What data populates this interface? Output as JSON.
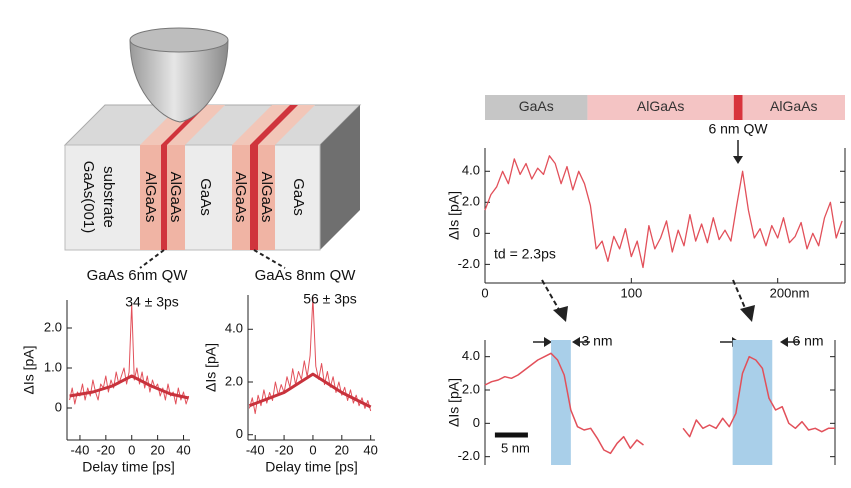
{
  "schematic": {
    "layers": [
      "GaAs(001)",
      "substrate",
      "AlGaAs",
      "AlGaAs",
      "GaAs",
      "AlGaAs",
      "AlGaAs",
      "GaAs"
    ],
    "qw_labels": [
      "GaAs 6nm QW",
      "GaAs 8nm QW"
    ]
  },
  "chart_data": [
    {
      "type": "line",
      "xlabel": "Delay time [ps]",
      "ylabel": "ΔIs [pA]",
      "annotations": [
        "34 ± 3ps"
      ],
      "xlim": [
        -50,
        45
      ],
      "ylim": [
        -0.8,
        2.7
      ],
      "xticks": [
        -40,
        -20,
        0,
        20,
        40
      ],
      "yticks": [
        0,
        {
          "value": 1.0,
          "label": "1.0"
        },
        {
          "value": 2.0,
          "label": "2.0"
        }
      ],
      "series": [
        {
          "color": "#e2505a",
          "width": 1,
          "x": [
            -48,
            -46,
            -44,
            -42,
            -40,
            -38,
            -36,
            -34,
            -32,
            -30,
            -28,
            -26,
            -24,
            -22,
            -20,
            -18,
            -16,
            -14,
            -12,
            -10,
            -8,
            -6,
            -4,
            -2,
            0,
            2,
            4,
            6,
            8,
            10,
            12,
            14,
            16,
            18,
            20,
            22,
            24,
            26,
            28,
            30,
            32,
            34,
            36,
            38,
            40,
            42,
            44
          ],
          "values": [
            0.2,
            0.5,
            0.1,
            0.4,
            0.3,
            0.6,
            0.2,
            0.5,
            0.3,
            0.7,
            0.4,
            0.2,
            0.6,
            0.5,
            0.8,
            0.4,
            0.7,
            0.5,
            0.9,
            0.6,
            0.8,
            1.0,
            0.6,
            0.9,
            2.6,
            0.7,
            1.0,
            0.6,
            0.9,
            0.5,
            0.8,
            0.4,
            0.7,
            0.5,
            0.6,
            0.3,
            0.5,
            0.2,
            0.6,
            0.3,
            0.4,
            0.1,
            0.5,
            0.2,
            0.4,
            0.1,
            0.3
          ]
        },
        {
          "color": "#c8323c",
          "width": 3,
          "x": [
            -48,
            -30,
            -15,
            0,
            15,
            30,
            44
          ],
          "values": [
            0.3,
            0.4,
            0.55,
            0.8,
            0.55,
            0.35,
            0.25
          ]
        }
      ]
    },
    {
      "type": "line",
      "xlabel": "Delay time [ps]",
      "ylabel": "ΔIs [pA]",
      "annotations": [
        "56 ± 3ps"
      ],
      "xlim": [
        -45,
        43
      ],
      "ylim": [
        -0.2,
        5.3
      ],
      "xticks": [
        -40,
        -20,
        0,
        20,
        40
      ],
      "yticks": [
        0,
        {
          "value": 2.0,
          "label": "2.0"
        },
        {
          "value": 4.0,
          "label": "4.0"
        }
      ],
      "series": [
        {
          "color": "#e2505a",
          "width": 1,
          "x": [
            -44,
            -42,
            -40,
            -38,
            -36,
            -34,
            -32,
            -30,
            -28,
            -26,
            -24,
            -22,
            -20,
            -18,
            -16,
            -14,
            -12,
            -10,
            -8,
            -6,
            -4,
            -2,
            0,
            2,
            4,
            6,
            8,
            10,
            12,
            14,
            16,
            18,
            20,
            22,
            24,
            26,
            28,
            30,
            32,
            34,
            36,
            38,
            40
          ],
          "values": [
            1.0,
            1.4,
            0.8,
            1.5,
            1.1,
            1.7,
            1.2,
            1.6,
            1.3,
            2.0,
            1.5,
            1.9,
            1.6,
            2.2,
            1.8,
            2.5,
            1.9,
            2.4,
            2.1,
            2.8,
            2.2,
            3.0,
            5.2,
            2.6,
            2.1,
            2.7,
            1.9,
            2.4,
            1.8,
            2.2,
            1.6,
            2.0,
            1.5,
            1.8,
            1.3,
            1.7,
            1.2,
            1.5,
            1.1,
            1.4,
            1.0,
            1.3,
            0.9
          ]
        },
        {
          "color": "#c8323c",
          "width": 3,
          "x": [
            -44,
            -20,
            0,
            20,
            40
          ],
          "values": [
            1.1,
            1.6,
            2.3,
            1.6,
            1.05
          ]
        }
      ]
    },
    {
      "type": "line",
      "ylabel": "ΔIs [pA]",
      "annotations": [
        "6 nm QW",
        "td = 2.3ps"
      ],
      "xlim": [
        0,
        246
      ],
      "ylim": [
        -3.2,
        5.5
      ],
      "xticks": [
        0,
        100,
        {
          "value": 200,
          "label": "200nm"
        }
      ],
      "yticks": [
        {
          "value": -2.0,
          "label": "-2.0"
        },
        0,
        {
          "value": 2.0,
          "label": "2.0"
        },
        {
          "value": 4.0,
          "label": "4.0"
        }
      ],
      "regions": [
        {
          "label": "GaAs",
          "start": 0,
          "end": 70,
          "color": "#c6c6c6"
        },
        {
          "label": "AlGaAs",
          "start": 70,
          "end": 170,
          "color": "#f4c4c4"
        },
        {
          "start": 170,
          "end": 176,
          "color": "#d8343c"
        },
        {
          "label": "AlGaAs",
          "start": 176,
          "end": 246,
          "color": "#f4c4c4"
        }
      ],
      "series": [
        {
          "color": "#e2505a",
          "width": 1.3,
          "x": [
            0,
            4,
            8,
            12,
            16,
            20,
            24,
            28,
            32,
            36,
            40,
            44,
            48,
            52,
            56,
            60,
            64,
            68,
            72,
            76,
            80,
            84,
            88,
            92,
            96,
            100,
            104,
            108,
            112,
            116,
            120,
            124,
            128,
            132,
            136,
            140,
            144,
            148,
            152,
            156,
            160,
            164,
            168,
            172,
            176,
            180,
            184,
            188,
            192,
            196,
            200,
            204,
            208,
            212,
            216,
            220,
            224,
            228,
            232,
            236,
            240,
            244
          ],
          "values": [
            1.5,
            2.5,
            3.0,
            4.0,
            3.2,
            4.8,
            3.8,
            4.5,
            3.5,
            4.2,
            3.8,
            5.0,
            4.5,
            3.2,
            4.3,
            2.8,
            4.0,
            3.2,
            1.8,
            -1.0,
            -0.5,
            -1.8,
            -0.2,
            -1.0,
            0.3,
            -1.5,
            -0.5,
            -2.2,
            0.5,
            -1.0,
            -0.3,
            0.8,
            -1.2,
            0.2,
            -0.8,
            1.2,
            -0.5,
            0.6,
            -0.6,
            1.0,
            -0.4,
            0.2,
            -0.5,
            1.8,
            4.0,
            1.5,
            -0.3,
            0.3,
            -0.8,
            0.5,
            -0.3,
            1.0,
            -0.6,
            -0.2,
            0.7,
            -1.0,
            0.0,
            -0.8,
            1.0,
            2.0,
            -0.3,
            0.8
          ]
        }
      ]
    },
    {
      "type": "line",
      "ylabel": "ΔIs [pA]",
      "annotations": [
        "3 nm",
        "6 nm"
      ],
      "xlim": [
        0,
        53
      ],
      "ylim": [
        -2.5,
        5.0
      ],
      "yticks": [
        {
          "value": -2.0,
          "label": "-2.0"
        },
        0,
        {
          "value": 2.0,
          "label": "2.0"
        },
        {
          "value": 4.0,
          "label": "4.0"
        }
      ],
      "spans": [
        {
          "start": 10,
          "end": 13,
          "color": "#a9cfe9"
        },
        {
          "start": 37.5,
          "end": 43.5,
          "color": "#a9cfe9"
        }
      ],
      "scalebar": {
        "start": 1.5,
        "end": 6.5,
        "label": "5 nm"
      },
      "series": [
        {
          "color": "#e2505a",
          "width": 1.5,
          "x": [
            0,
            1,
            2,
            3,
            4,
            5,
            6,
            7,
            8,
            9,
            10,
            11,
            12,
            13,
            14,
            15,
            16,
            17,
            18,
            19,
            20,
            21,
            22,
            23,
            24,
            25,
            26,
            27,
            28,
            29,
            30,
            31,
            32,
            33,
            34,
            35,
            36,
            37,
            38,
            39,
            40,
            41,
            42,
            43,
            44,
            45,
            46,
            47,
            48,
            49,
            50,
            51,
            52,
            53
          ],
          "values": [
            2.3,
            2.5,
            2.6,
            2.8,
            2.7,
            2.9,
            3.2,
            3.5,
            3.8,
            4.0,
            4.2,
            3.8,
            2.9,
            0.8,
            -0.2,
            -0.4,
            -0.3,
            -0.9,
            -1.6,
            -1.8,
            -1.2,
            -0.8,
            -1.5,
            -1.0,
            -1.3,
            null,
            null,
            null,
            null,
            null,
            -0.3,
            -0.8,
            0.2,
            -0.3,
            -0.1,
            -0.3,
            0.3,
            -0.2,
            0.6,
            3.0,
            4.0,
            3.8,
            3.3,
            1.5,
            0.8,
            1.0,
            0.0,
            -0.3,
            0.1,
            -0.4,
            -0.3,
            -0.5,
            -0.3,
            -0.3
          ]
        }
      ]
    }
  ]
}
